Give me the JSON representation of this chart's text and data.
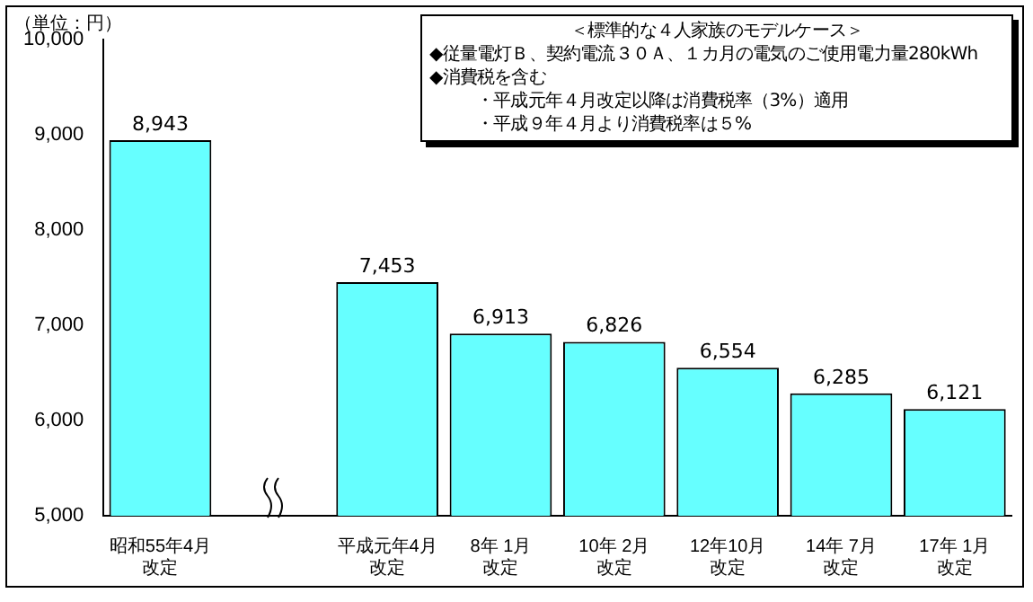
{
  "chart_data": {
    "type": "bar",
    "ylabel": "（単位：円）",
    "categories": [
      "昭和55年4月改定",
      null,
      "平成元年4月改定",
      "8年 1月改定",
      "10年 2月改定",
      "12年10月改定",
      "14年 7月改定",
      "17年 1月改定"
    ],
    "values": [
      8943,
      null,
      7453,
      6913,
      6826,
      6554,
      6285,
      6121
    ],
    "color": "#66ffff",
    "ylim": [
      5000,
      10000
    ],
    "yticks": [
      {
        "value": 5000,
        "label": "5,000"
      },
      {
        "value": 6000,
        "label": "6,000"
      },
      {
        "value": 7000,
        "label": "7,000"
      },
      {
        "value": 8000,
        "label": "8,000"
      },
      {
        "value": 9000,
        "label": "9,000"
      },
      {
        "value": 10000,
        "label": "10,000"
      }
    ],
    "grid": false,
    "value_labels": [
      "8,943",
      null,
      "7,453",
      "6,913",
      "6,826",
      "6,554",
      "6,285",
      "6,121"
    ],
    "annotations": [
      "＜標準的な４人家族のモデルケース＞",
      "◆従量電灯Ｂ、契約電流３０Ａ、１カ月の電気のご使用電力量280kWh",
      "◆消費税を含む",
      "・平成元年４月改定以降は消費税率（3%）適用",
      "・平成９年４月より消費税率は５%"
    ]
  }
}
